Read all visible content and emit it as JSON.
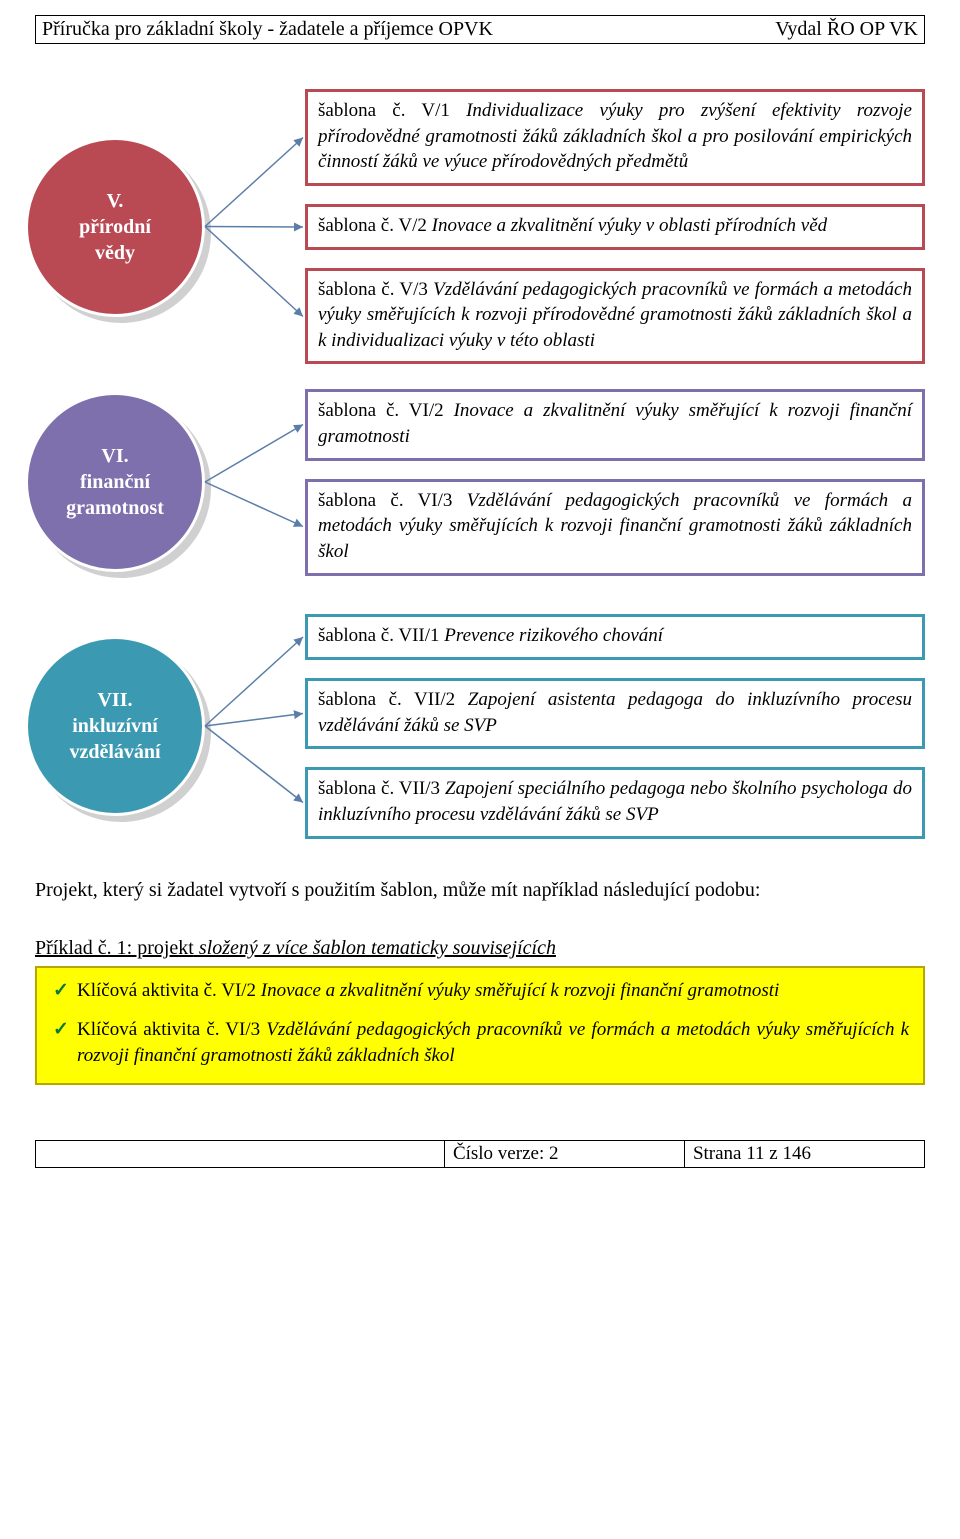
{
  "header": {
    "left": "Příručka pro základní školy - žadatele a příjemce OPVK",
    "right": "Vydal ŘO OP VK"
  },
  "sections": [
    {
      "circle": {
        "line1": "V.",
        "line2": "přírodní",
        "line3": "vědy",
        "fill": "#b94a54",
        "stroke": "#ffffff"
      },
      "box_border": "#b94a54",
      "boxes": [
        {
          "prefix": "šablona č. V/1 ",
          "body": "Individualizace výuky pro zvýšení efektivity rozvoje přírodovědné gramotnosti žáků základních škol a pro posilování empirických činností žáků ve výuce přírodovědných předmětů"
        },
        {
          "prefix": "šablona č. V/2 ",
          "body": "Inovace a zkvalitnění výuky v oblasti přírodních věd"
        },
        {
          "prefix": "šablona č. V/3 ",
          "body": "Vzdělávání pedagogických pracovníků ve formách a metodách výuky směřujících k rozvoji přírodovědné gramotnosti žáků základních škol a k individualizaci výuky v této oblasti"
        }
      ]
    },
    {
      "circle": {
        "line1": "VI.",
        "line2": "finanční",
        "line3": "gramotnost",
        "fill": "#7e6fad",
        "stroke": "#ffffff"
      },
      "box_border": "#7e6fad",
      "boxes": [
        {
          "prefix": "šablona č. VI/2 ",
          "body": "Inovace a zkvalitnění výuky směřující k rozvoji finanční gramotnosti"
        },
        {
          "prefix": "šablona č. VI/3 ",
          "body": "Vzdělávání pedagogických pracovníků ve formách a metodách výuky směřujících k rozvoji finanční gramotnosti žáků základních škol"
        }
      ]
    },
    {
      "circle": {
        "line1": "VII.",
        "line2": "inkluzívní",
        "line3": "vzdělávání",
        "fill": "#3b9ab2",
        "stroke": "#ffffff"
      },
      "box_border": "#3b9ab2",
      "boxes": [
        {
          "prefix": "šablona č. VII/1 ",
          "body": "Prevence rizikového chování"
        },
        {
          "prefix": "šablona č. VII/2 ",
          "body": "Zapojení asistenta pedagoga do inkluzívního procesu vzdělávání žáků se SVP"
        },
        {
          "prefix": "šablona č. VII/3 ",
          "body": "Zapojení speciálního pedagoga nebo školního psychologa do inkluzívního procesu vzdělávání žáků se SVP"
        }
      ]
    }
  ],
  "connector": {
    "stroke": "#5b7ea8",
    "width": 1.5
  },
  "paragraph": "Projekt, který si žadatel vytvoří s použitím šablon, může mít například následující podobu:",
  "example": {
    "label_underlined": "Příklad č. 1: projekt",
    "label_italic_underlined": " složený z více šablon tematicky souvisejících",
    "box_bg": "#ffff00",
    "box_border": "#b8a500",
    "items": [
      {
        "prefix": "Klíčová aktivita č. VI/2 ",
        "body": "Inovace a zkvalitnění výuky směřující k rozvoji finanční gramotnosti"
      },
      {
        "prefix": "Klíčová aktivita č. VI/3 ",
        "body": "Vzdělávání pedagogických pracovníků ve formách a metodách výuky směřujících k rozvoji finanční gramotnosti žáků základních škol"
      }
    ]
  },
  "footer": {
    "c1": "",
    "c2": "Číslo verze: 2",
    "c3": "Strana 11 z 146"
  }
}
